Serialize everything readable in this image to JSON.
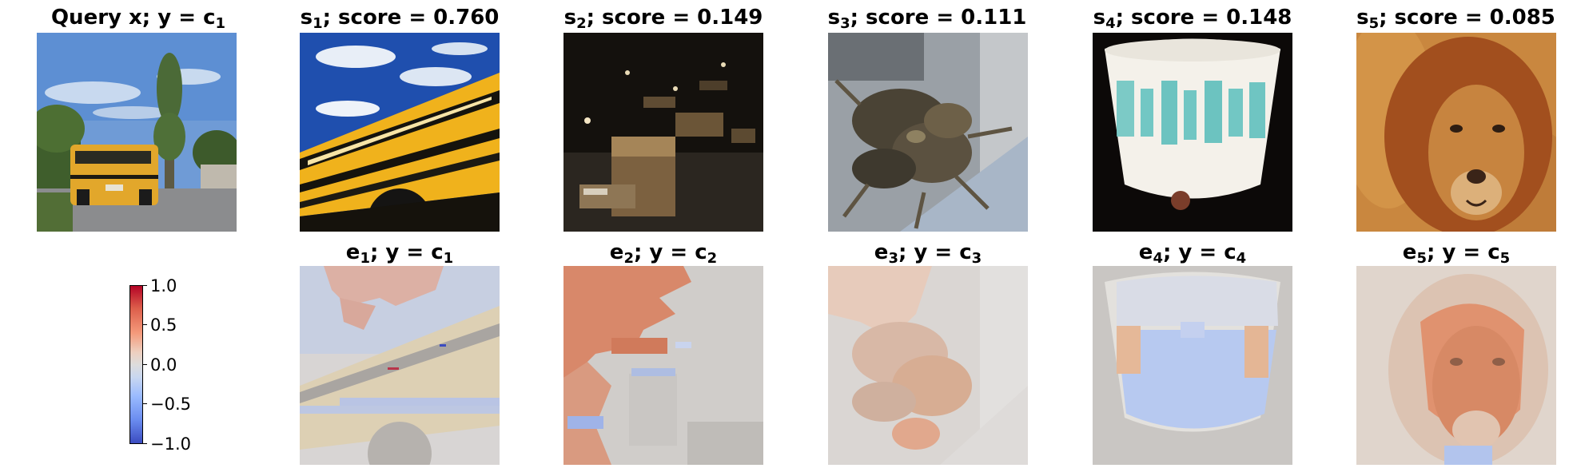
{
  "top_row": [
    {
      "prefix": "Query x; y = c",
      "sub": "1",
      "suffix": ""
    },
    {
      "prefix": "s",
      "sub": "1",
      "suffix": "; score = 0.760"
    },
    {
      "prefix": "s",
      "sub": "2",
      "suffix": "; score = 0.149"
    },
    {
      "prefix": "s",
      "sub": "3",
      "suffix": "; score = 0.111"
    },
    {
      "prefix": "s",
      "sub": "4",
      "suffix": "; score = 0.148"
    },
    {
      "prefix": "s",
      "sub": "5",
      "suffix": "; score = 0.085"
    }
  ],
  "bottom_row": [
    {
      "e": "e",
      "e_sub": "1",
      "mid": "; y = c",
      "c_sub": "1"
    },
    {
      "e": "e",
      "e_sub": "2",
      "mid": "; y = c",
      "c_sub": "2"
    },
    {
      "e": "e",
      "e_sub": "3",
      "mid": "; y = c",
      "c_sub": "3"
    },
    {
      "e": "e",
      "e_sub": "4",
      "mid": "; y = c",
      "c_sub": "4"
    },
    {
      "e": "e",
      "e_sub": "5",
      "mid": "; y = c",
      "c_sub": "5"
    }
  ],
  "colorbar": {
    "ticks": [
      "1.0",
      "0.5",
      "0.0",
      "−0.5",
      "−1.0"
    ],
    "colors": {
      "high": "#b40426",
      "mid": "#dddcdc",
      "low": "#3b4cc0"
    }
  }
}
